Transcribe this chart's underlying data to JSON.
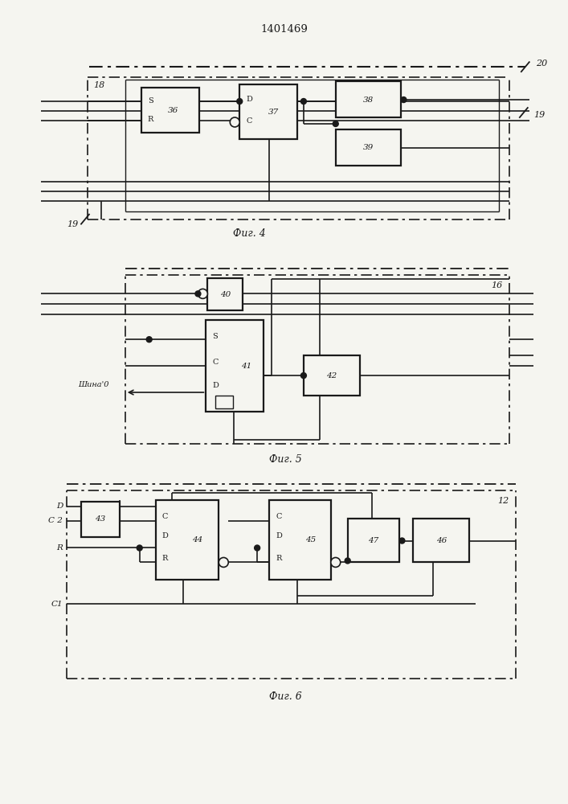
{
  "title": "1401469",
  "fig4_label": "Фиг. 4",
  "fig5_label": "Фиг. 5",
  "fig6_label": "Фиг. 6",
  "bg_color": "#f5f5f0",
  "line_color": "#1a1a1a"
}
